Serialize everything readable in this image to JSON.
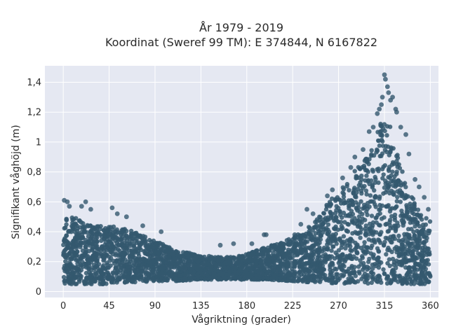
{
  "chart_data": {
    "type": "scatter",
    "title": "År 1979 - 2019",
    "subtitle": "Koordinat (Sweref 99 TM): E 374844, N 6167822",
    "xlabel": "Vågriktning (grader)",
    "ylabel": "Signifikant våghöjd (m)",
    "xlim": [
      -18,
      368
    ],
    "ylim": [
      -0.04,
      1.51
    ],
    "x_ticks": [
      0,
      45,
      90,
      135,
      180,
      225,
      270,
      315,
      360
    ],
    "x_tick_labels": [
      "0",
      "45",
      "90",
      "135",
      "180",
      "225",
      "270",
      "315",
      "360"
    ],
    "y_ticks": [
      0,
      0.2,
      0.4,
      0.6,
      0.8,
      1.0,
      1.2,
      1.4
    ],
    "y_tick_labels": [
      "0",
      "0,2",
      "0,4",
      "0,6",
      "0,8",
      "1",
      "1,2",
      "1,4"
    ],
    "grid": true,
    "marker_color": "#34586e",
    "plot_bg": "#e5e8f2",
    "envelope": {
      "direction": [
        0,
        10,
        20,
        30,
        45,
        55,
        70,
        90,
        110,
        135,
        160,
        180,
        200,
        225,
        245,
        260,
        270,
        285,
        300,
        310,
        315,
        320,
        330,
        340,
        350,
        360
      ],
      "min_height": [
        0.05,
        0.05,
        0.05,
        0.05,
        0.05,
        0.06,
        0.06,
        0.07,
        0.07,
        0.08,
        0.08,
        0.08,
        0.08,
        0.07,
        0.06,
        0.06,
        0.05,
        0.05,
        0.05,
        0.05,
        0.05,
        0.05,
        0.05,
        0.05,
        0.05,
        0.05
      ],
      "max_height": [
        0.52,
        0.5,
        0.46,
        0.45,
        0.44,
        0.43,
        0.4,
        0.34,
        0.28,
        0.24,
        0.23,
        0.25,
        0.3,
        0.36,
        0.45,
        0.6,
        0.66,
        0.8,
        0.92,
        1.1,
        1.2,
        1.12,
        0.86,
        0.68,
        0.52,
        0.5
      ]
    },
    "outliers": [
      {
        "x": 1,
        "y": 0.61
      },
      {
        "x": 4,
        "y": 0.6
      },
      {
        "x": 6,
        "y": 0.57
      },
      {
        "x": 18,
        "y": 0.57
      },
      {
        "x": 22,
        "y": 0.6
      },
      {
        "x": 27,
        "y": 0.55
      },
      {
        "x": 48,
        "y": 0.56
      },
      {
        "x": 53,
        "y": 0.52
      },
      {
        "x": 62,
        "y": 0.5
      },
      {
        "x": 78,
        "y": 0.44
      },
      {
        "x": 96,
        "y": 0.4
      },
      {
        "x": 154,
        "y": 0.31
      },
      {
        "x": 167,
        "y": 0.32
      },
      {
        "x": 185,
        "y": 0.32
      },
      {
        "x": 197,
        "y": 0.38
      },
      {
        "x": 199,
        "y": 0.38
      },
      {
        "x": 227,
        "y": 0.38
      },
      {
        "x": 233,
        "y": 0.45
      },
      {
        "x": 239,
        "y": 0.55
      },
      {
        "x": 245,
        "y": 0.52
      },
      {
        "x": 259,
        "y": 0.64
      },
      {
        "x": 264,
        "y": 0.68
      },
      {
        "x": 274,
        "y": 0.76
      },
      {
        "x": 282,
        "y": 0.83
      },
      {
        "x": 286,
        "y": 0.9
      },
      {
        "x": 294,
        "y": 0.95
      },
      {
        "x": 300,
        "y": 1.07
      },
      {
        "x": 304,
        "y": 1.1
      },
      {
        "x": 308,
        "y": 1.19
      },
      {
        "x": 310,
        "y": 1.22
      },
      {
        "x": 312,
        "y": 1.25
      },
      {
        "x": 313,
        "y": 1.3
      },
      {
        "x": 315,
        "y": 1.45
      },
      {
        "x": 316,
        "y": 1.42
      },
      {
        "x": 318,
        "y": 1.37
      },
      {
        "x": 319,
        "y": 1.33
      },
      {
        "x": 321,
        "y": 1.28
      },
      {
        "x": 323,
        "y": 1.3
      },
      {
        "x": 326,
        "y": 1.22
      },
      {
        "x": 327,
        "y": 1.2
      },
      {
        "x": 331,
        "y": 1.1
      },
      {
        "x": 336,
        "y": 1.05
      },
      {
        "x": 339,
        "y": 0.92
      },
      {
        "x": 345,
        "y": 0.75
      },
      {
        "x": 349,
        "y": 0.7
      },
      {
        "x": 354,
        "y": 0.63
      },
      {
        "x": 358,
        "y": 0.55
      }
    ]
  }
}
